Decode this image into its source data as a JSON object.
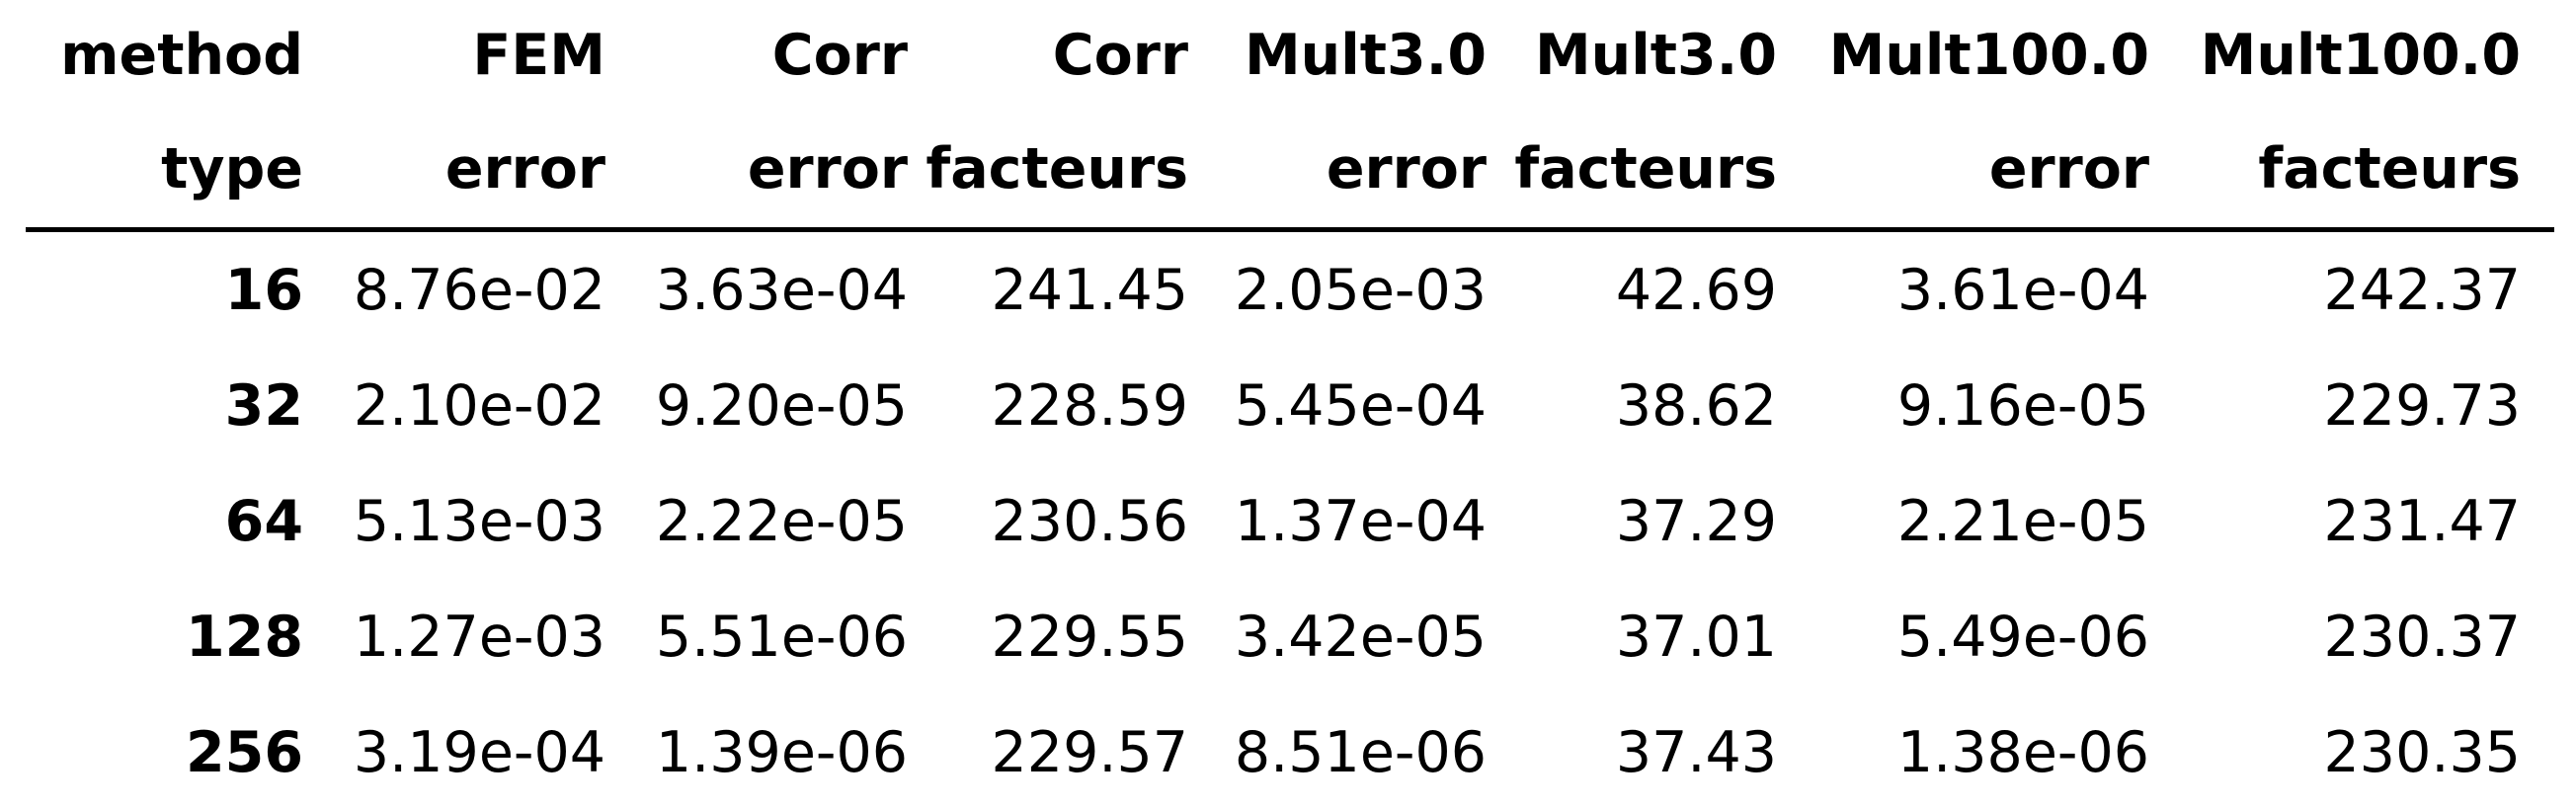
{
  "table": {
    "header_row_1": [
      "method",
      "FEM",
      "Corr",
      "Corr",
      "Mult3.0",
      "Mult3.0",
      "Mult100.0",
      "Mult100.0"
    ],
    "header_row_2": [
      "type",
      "error",
      "error",
      "facteurs",
      "error",
      "facteurs",
      "error",
      "facteurs"
    ],
    "rows": [
      {
        "label": "16",
        "cells": [
          "8.76e-02",
          "3.63e-04",
          "241.45",
          "2.05e-03",
          "42.69",
          "3.61e-04",
          "242.37"
        ]
      },
      {
        "label": "32",
        "cells": [
          "2.10e-02",
          "9.20e-05",
          "228.59",
          "5.45e-04",
          "38.62",
          "9.16e-05",
          "229.73"
        ]
      },
      {
        "label": "64",
        "cells": [
          "5.13e-03",
          "2.22e-05",
          "230.56",
          "1.37e-04",
          "37.29",
          "2.21e-05",
          "231.47"
        ]
      },
      {
        "label": "128",
        "cells": [
          "1.27e-03",
          "5.51e-06",
          "229.55",
          "3.42e-05",
          "37.01",
          "5.49e-06",
          "230.37"
        ]
      },
      {
        "label": "256",
        "cells": [
          "3.19e-04",
          "1.39e-06",
          "229.57",
          "8.51e-06",
          "37.43",
          "1.38e-06",
          "230.35"
        ]
      }
    ]
  }
}
